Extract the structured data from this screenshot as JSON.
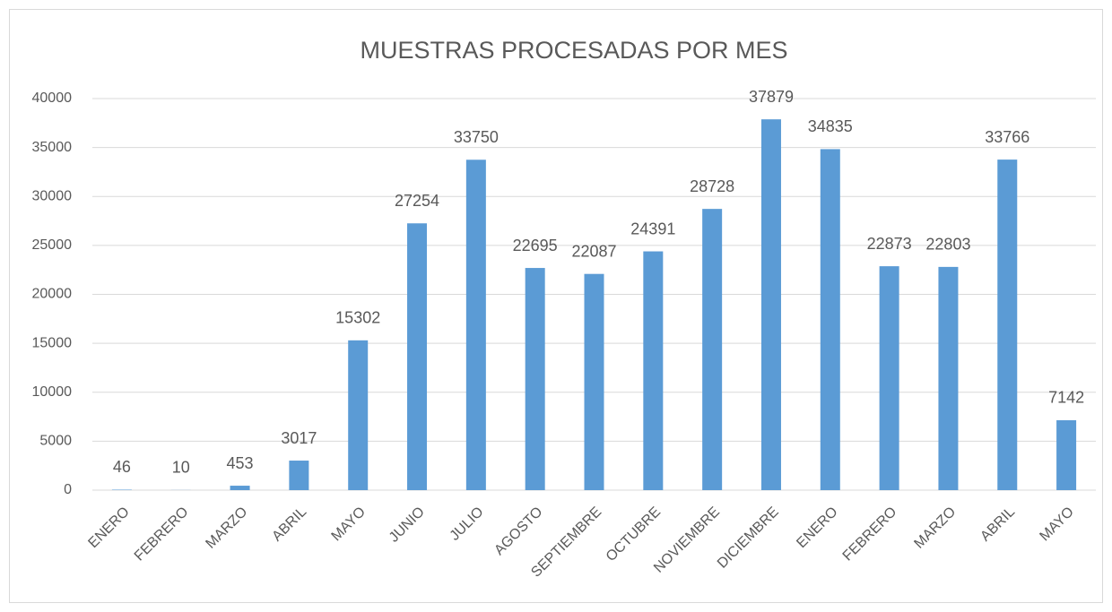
{
  "chart_data": {
    "type": "bar",
    "title": "MUESTRAS PROCESADAS POR MES",
    "categories": [
      "ENERO",
      "FEBRERO",
      "MARZO",
      "ABRIL",
      "MAYO",
      "JUNIO",
      "JULIO",
      "AGOSTO",
      "SEPTIEMBRE",
      "OCTUBRE",
      "NOVIEMBRE",
      "DICIEMBRE",
      "ENERO",
      "FEBRERO",
      "MARZO",
      "ABRIL",
      "MAYO"
    ],
    "values": [
      46,
      10,
      453,
      3017,
      15302,
      27254,
      33750,
      22695,
      22087,
      24391,
      28728,
      37879,
      34835,
      22873,
      22803,
      33766,
      7142
    ],
    "color": "#5b9bd5",
    "ylim": [
      0,
      40000
    ],
    "yticks": [
      0,
      5000,
      10000,
      15000,
      20000,
      25000,
      30000,
      35000,
      40000
    ],
    "grid": true
  }
}
